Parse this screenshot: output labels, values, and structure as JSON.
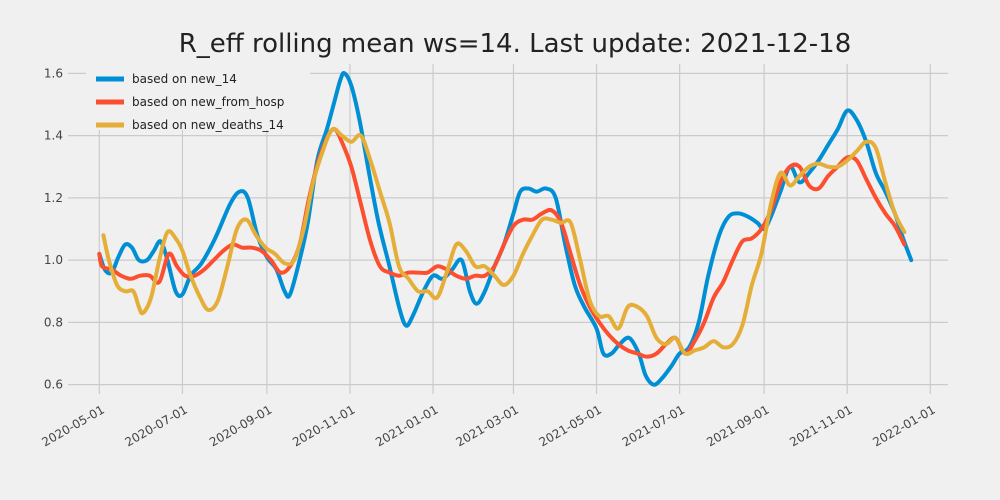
{
  "chart_data": {
    "type": "line",
    "title": "R_eff rolling mean ws=14. Last update: 2021-12-18",
    "xlabel": "",
    "ylabel": "",
    "x_axis": {
      "type": "date",
      "range": [
        "2020-04-08",
        "2022-01-14"
      ],
      "ticks": [
        "2020-05-01",
        "2020-07-01",
        "2020-09-01",
        "2020-11-01",
        "2021-01-01",
        "2021-03-01",
        "2021-05-01",
        "2021-07-01",
        "2021-09-01",
        "2021-11-01",
        "2022-01-01"
      ]
    },
    "y_axis": {
      "range": [
        0.57,
        1.63
      ],
      "ticks": [
        0.6,
        0.8,
        1.0,
        1.2,
        1.4,
        1.6
      ],
      "tick_labels": [
        "0.6",
        "0.8",
        "1.0",
        "1.2",
        "1.4",
        "1.6"
      ]
    },
    "grid": true,
    "legend": "top-left",
    "series": [
      {
        "name": "based on new_14",
        "color": "#008fd5",
        "points": [
          [
            "2020-05-01",
            1.02
          ],
          [
            "2020-05-05",
            0.97
          ],
          [
            "2020-05-10",
            0.96
          ],
          [
            "2020-05-15",
            1.01
          ],
          [
            "2020-05-20",
            1.05
          ],
          [
            "2020-05-25",
            1.04
          ],
          [
            "2020-05-30",
            1.0
          ],
          [
            "2020-06-05",
            1.0
          ],
          [
            "2020-06-10",
            1.03
          ],
          [
            "2020-06-15",
            1.06
          ],
          [
            "2020-06-20",
            1.0
          ],
          [
            "2020-06-26",
            0.9
          ],
          [
            "2020-07-01",
            0.89
          ],
          [
            "2020-07-07",
            0.95
          ],
          [
            "2020-07-15",
            0.99
          ],
          [
            "2020-07-25",
            1.07
          ],
          [
            "2020-08-05",
            1.18
          ],
          [
            "2020-08-12",
            1.22
          ],
          [
            "2020-08-18",
            1.2
          ],
          [
            "2020-08-25",
            1.08
          ],
          [
            "2020-09-01",
            1.01
          ],
          [
            "2020-09-08",
            0.97
          ],
          [
            "2020-09-14",
            0.9
          ],
          [
            "2020-09-18",
            0.89
          ],
          [
            "2020-09-25",
            1.0
          ],
          [
            "2020-10-01",
            1.12
          ],
          [
            "2020-10-08",
            1.32
          ],
          [
            "2020-10-15",
            1.42
          ],
          [
            "2020-10-20",
            1.5
          ],
          [
            "2020-10-25",
            1.58
          ],
          [
            "2020-10-28",
            1.6
          ],
          [
            "2020-11-02",
            1.56
          ],
          [
            "2020-11-08",
            1.45
          ],
          [
            "2020-11-15",
            1.28
          ],
          [
            "2020-11-22",
            1.12
          ],
          [
            "2020-11-30",
            0.98
          ],
          [
            "2020-12-07",
            0.85
          ],
          [
            "2020-12-12",
            0.79
          ],
          [
            "2020-12-17",
            0.82
          ],
          [
            "2020-12-25",
            0.9
          ],
          [
            "2021-01-01",
            0.95
          ],
          [
            "2021-01-08",
            0.94
          ],
          [
            "2021-01-15",
            0.97
          ],
          [
            "2021-01-22",
            1.0
          ],
          [
            "2021-01-28",
            0.9
          ],
          [
            "2021-02-02",
            0.86
          ],
          [
            "2021-02-08",
            0.9
          ],
          [
            "2021-02-15",
            0.98
          ],
          [
            "2021-02-22",
            1.05
          ],
          [
            "2021-03-01",
            1.15
          ],
          [
            "2021-03-06",
            1.22
          ],
          [
            "2021-03-12",
            1.23
          ],
          [
            "2021-03-18",
            1.22
          ],
          [
            "2021-03-25",
            1.23
          ],
          [
            "2021-04-01",
            1.2
          ],
          [
            "2021-04-08",
            1.05
          ],
          [
            "2021-04-15",
            0.92
          ],
          [
            "2021-04-22",
            0.85
          ],
          [
            "2021-05-01",
            0.78
          ],
          [
            "2021-05-06",
            0.7
          ],
          [
            "2021-05-12",
            0.7
          ],
          [
            "2021-05-18",
            0.73
          ],
          [
            "2021-05-25",
            0.75
          ],
          [
            "2021-06-01",
            0.7
          ],
          [
            "2021-06-06",
            0.63
          ],
          [
            "2021-06-12",
            0.6
          ],
          [
            "2021-06-18",
            0.62
          ],
          [
            "2021-06-25",
            0.66
          ],
          [
            "2021-07-01",
            0.7
          ],
          [
            "2021-07-08",
            0.72
          ],
          [
            "2021-07-15",
            0.8
          ],
          [
            "2021-07-22",
            0.95
          ],
          [
            "2021-07-30",
            1.08
          ],
          [
            "2021-08-06",
            1.14
          ],
          [
            "2021-08-13",
            1.15
          ],
          [
            "2021-08-20",
            1.14
          ],
          [
            "2021-08-27",
            1.12
          ],
          [
            "2021-09-01",
            1.1
          ],
          [
            "2021-09-06",
            1.14
          ],
          [
            "2021-09-13",
            1.22
          ],
          [
            "2021-09-20",
            1.3
          ],
          [
            "2021-09-27",
            1.25
          ],
          [
            "2021-10-04",
            1.28
          ],
          [
            "2021-10-11",
            1.32
          ],
          [
            "2021-10-18",
            1.37
          ],
          [
            "2021-10-25",
            1.42
          ],
          [
            "2021-11-01",
            1.48
          ],
          [
            "2021-11-08",
            1.45
          ],
          [
            "2021-11-15",
            1.38
          ],
          [
            "2021-11-22",
            1.28
          ],
          [
            "2021-11-29",
            1.22
          ],
          [
            "2021-12-06",
            1.15
          ],
          [
            "2021-12-12",
            1.07
          ],
          [
            "2021-12-18",
            1.0
          ]
        ]
      },
      {
        "name": "based on new_from_hosp",
        "color": "#fc4f30",
        "points": [
          [
            "2020-05-01",
            1.02
          ],
          [
            "2020-05-03",
            0.98
          ],
          [
            "2020-05-10",
            0.97
          ],
          [
            "2020-05-17",
            0.95
          ],
          [
            "2020-05-24",
            0.94
          ],
          [
            "2020-05-31",
            0.95
          ],
          [
            "2020-06-07",
            0.95
          ],
          [
            "2020-06-14",
            0.93
          ],
          [
            "2020-06-21",
            1.02
          ],
          [
            "2020-06-27",
            0.98
          ],
          [
            "2020-07-03",
            0.95
          ],
          [
            "2020-07-10",
            0.95
          ],
          [
            "2020-07-17",
            0.97
          ],
          [
            "2020-07-24",
            1.0
          ],
          [
            "2020-07-31",
            1.03
          ],
          [
            "2020-08-07",
            1.05
          ],
          [
            "2020-08-14",
            1.04
          ],
          [
            "2020-08-21",
            1.04
          ],
          [
            "2020-08-28",
            1.03
          ],
          [
            "2020-09-04",
            1.0
          ],
          [
            "2020-09-11",
            0.96
          ],
          [
            "2020-09-18",
            0.98
          ],
          [
            "2020-09-25",
            1.05
          ],
          [
            "2020-10-02",
            1.2
          ],
          [
            "2020-10-09",
            1.32
          ],
          [
            "2020-10-16",
            1.4
          ],
          [
            "2020-10-21",
            1.42
          ],
          [
            "2020-10-26",
            1.38
          ],
          [
            "2020-11-02",
            1.3
          ],
          [
            "2020-11-09",
            1.18
          ],
          [
            "2020-11-16",
            1.06
          ],
          [
            "2020-11-23",
            0.98
          ],
          [
            "2020-11-30",
            0.96
          ],
          [
            "2020-12-07",
            0.95
          ],
          [
            "2020-12-14",
            0.96
          ],
          [
            "2020-12-21",
            0.96
          ],
          [
            "2020-12-28",
            0.96
          ],
          [
            "2021-01-04",
            0.98
          ],
          [
            "2021-01-11",
            0.97
          ],
          [
            "2021-01-18",
            0.95
          ],
          [
            "2021-01-25",
            0.94
          ],
          [
            "2021-02-01",
            0.95
          ],
          [
            "2021-02-08",
            0.95
          ],
          [
            "2021-02-15",
            0.98
          ],
          [
            "2021-02-22",
            1.05
          ],
          [
            "2021-03-01",
            1.11
          ],
          [
            "2021-03-08",
            1.13
          ],
          [
            "2021-03-15",
            1.13
          ],
          [
            "2021-03-22",
            1.15
          ],
          [
            "2021-03-29",
            1.16
          ],
          [
            "2021-04-05",
            1.12
          ],
          [
            "2021-04-12",
            1.02
          ],
          [
            "2021-04-19",
            0.92
          ],
          [
            "2021-04-26",
            0.85
          ],
          [
            "2021-05-03",
            0.8
          ],
          [
            "2021-05-10",
            0.76
          ],
          [
            "2021-05-17",
            0.73
          ],
          [
            "2021-05-24",
            0.71
          ],
          [
            "2021-05-31",
            0.7
          ],
          [
            "2021-06-07",
            0.69
          ],
          [
            "2021-06-14",
            0.7
          ],
          [
            "2021-06-21",
            0.73
          ],
          [
            "2021-06-28",
            0.75
          ],
          [
            "2021-07-05",
            0.7
          ],
          [
            "2021-07-12",
            0.74
          ],
          [
            "2021-07-19",
            0.8
          ],
          [
            "2021-07-26",
            0.88
          ],
          [
            "2021-08-02",
            0.93
          ],
          [
            "2021-08-09",
            1.0
          ],
          [
            "2021-08-16",
            1.06
          ],
          [
            "2021-08-23",
            1.07
          ],
          [
            "2021-08-30",
            1.1
          ],
          [
            "2021-09-06",
            1.16
          ],
          [
            "2021-09-13",
            1.25
          ],
          [
            "2021-09-20",
            1.3
          ],
          [
            "2021-09-27",
            1.3
          ],
          [
            "2021-10-04",
            1.24
          ],
          [
            "2021-10-11",
            1.23
          ],
          [
            "2021-10-18",
            1.27
          ],
          [
            "2021-10-25",
            1.3
          ],
          [
            "2021-11-01",
            1.33
          ],
          [
            "2021-11-08",
            1.32
          ],
          [
            "2021-11-15",
            1.26
          ],
          [
            "2021-11-22",
            1.2
          ],
          [
            "2021-11-29",
            1.15
          ],
          [
            "2021-12-06",
            1.11
          ],
          [
            "2021-12-13",
            1.05
          ]
        ]
      },
      {
        "name": "based on new_deaths_14",
        "color": "#e5ae38",
        "points": [
          [
            "2020-05-04",
            1.08
          ],
          [
            "2020-05-08",
            1.0
          ],
          [
            "2020-05-14",
            0.92
          ],
          [
            "2020-05-20",
            0.9
          ],
          [
            "2020-05-26",
            0.9
          ],
          [
            "2020-05-30",
            0.85
          ],
          [
            "2020-06-02",
            0.83
          ],
          [
            "2020-06-08",
            0.88
          ],
          [
            "2020-06-14",
            1.0
          ],
          [
            "2020-06-20",
            1.09
          ],
          [
            "2020-06-26",
            1.07
          ],
          [
            "2020-07-01",
            1.03
          ],
          [
            "2020-07-07",
            0.95
          ],
          [
            "2020-07-14",
            0.88
          ],
          [
            "2020-07-20",
            0.84
          ],
          [
            "2020-07-27",
            0.87
          ],
          [
            "2020-08-03",
            0.98
          ],
          [
            "2020-08-10",
            1.1
          ],
          [
            "2020-08-17",
            1.13
          ],
          [
            "2020-08-24",
            1.08
          ],
          [
            "2020-08-31",
            1.04
          ],
          [
            "2020-09-07",
            1.02
          ],
          [
            "2020-09-14",
            0.99
          ],
          [
            "2020-09-21",
            1.0
          ],
          [
            "2020-09-28",
            1.1
          ],
          [
            "2020-10-05",
            1.25
          ],
          [
            "2020-10-12",
            1.35
          ],
          [
            "2020-10-19",
            1.42
          ],
          [
            "2020-10-26",
            1.4
          ],
          [
            "2020-11-02",
            1.38
          ],
          [
            "2020-11-09",
            1.4
          ],
          [
            "2020-11-16",
            1.32
          ],
          [
            "2020-11-23",
            1.22
          ],
          [
            "2020-11-30",
            1.12
          ],
          [
            "2020-12-07",
            0.98
          ],
          [
            "2020-12-14",
            0.94
          ],
          [
            "2020-12-21",
            0.9
          ],
          [
            "2020-12-28",
            0.9
          ],
          [
            "2021-01-04",
            0.88
          ],
          [
            "2021-01-11",
            0.96
          ],
          [
            "2021-01-18",
            1.05
          ],
          [
            "2021-01-25",
            1.03
          ],
          [
            "2021-02-01",
            0.98
          ],
          [
            "2021-02-08",
            0.98
          ],
          [
            "2021-02-15",
            0.95
          ],
          [
            "2021-02-22",
            0.92
          ],
          [
            "2021-03-01",
            0.95
          ],
          [
            "2021-03-08",
            1.02
          ],
          [
            "2021-03-15",
            1.08
          ],
          [
            "2021-03-22",
            1.13
          ],
          [
            "2021-03-29",
            1.13
          ],
          [
            "2021-04-05",
            1.12
          ],
          [
            "2021-04-12",
            1.12
          ],
          [
            "2021-04-19",
            1.0
          ],
          [
            "2021-04-26",
            0.87
          ],
          [
            "2021-05-03",
            0.82
          ],
          [
            "2021-05-10",
            0.82
          ],
          [
            "2021-05-17",
            0.78
          ],
          [
            "2021-05-24",
            0.85
          ],
          [
            "2021-05-31",
            0.85
          ],
          [
            "2021-06-07",
            0.82
          ],
          [
            "2021-06-14",
            0.75
          ],
          [
            "2021-06-21",
            0.73
          ],
          [
            "2021-06-28",
            0.75
          ],
          [
            "2021-07-05",
            0.7
          ],
          [
            "2021-07-12",
            0.71
          ],
          [
            "2021-07-19",
            0.72
          ],
          [
            "2021-07-26",
            0.74
          ],
          [
            "2021-08-02",
            0.72
          ],
          [
            "2021-08-09",
            0.73
          ],
          [
            "2021-08-16",
            0.79
          ],
          [
            "2021-08-23",
            0.92
          ],
          [
            "2021-08-30",
            1.02
          ],
          [
            "2021-09-06",
            1.18
          ],
          [
            "2021-09-13",
            1.28
          ],
          [
            "2021-09-20",
            1.24
          ],
          [
            "2021-09-27",
            1.27
          ],
          [
            "2021-10-04",
            1.3
          ],
          [
            "2021-10-11",
            1.31
          ],
          [
            "2021-10-18",
            1.3
          ],
          [
            "2021-10-25",
            1.3
          ],
          [
            "2021-11-01",
            1.32
          ],
          [
            "2021-11-08",
            1.35
          ],
          [
            "2021-11-15",
            1.38
          ],
          [
            "2021-11-22",
            1.36
          ],
          [
            "2021-11-29",
            1.25
          ],
          [
            "2021-12-06",
            1.15
          ],
          [
            "2021-12-13",
            1.09
          ]
        ]
      }
    ]
  }
}
